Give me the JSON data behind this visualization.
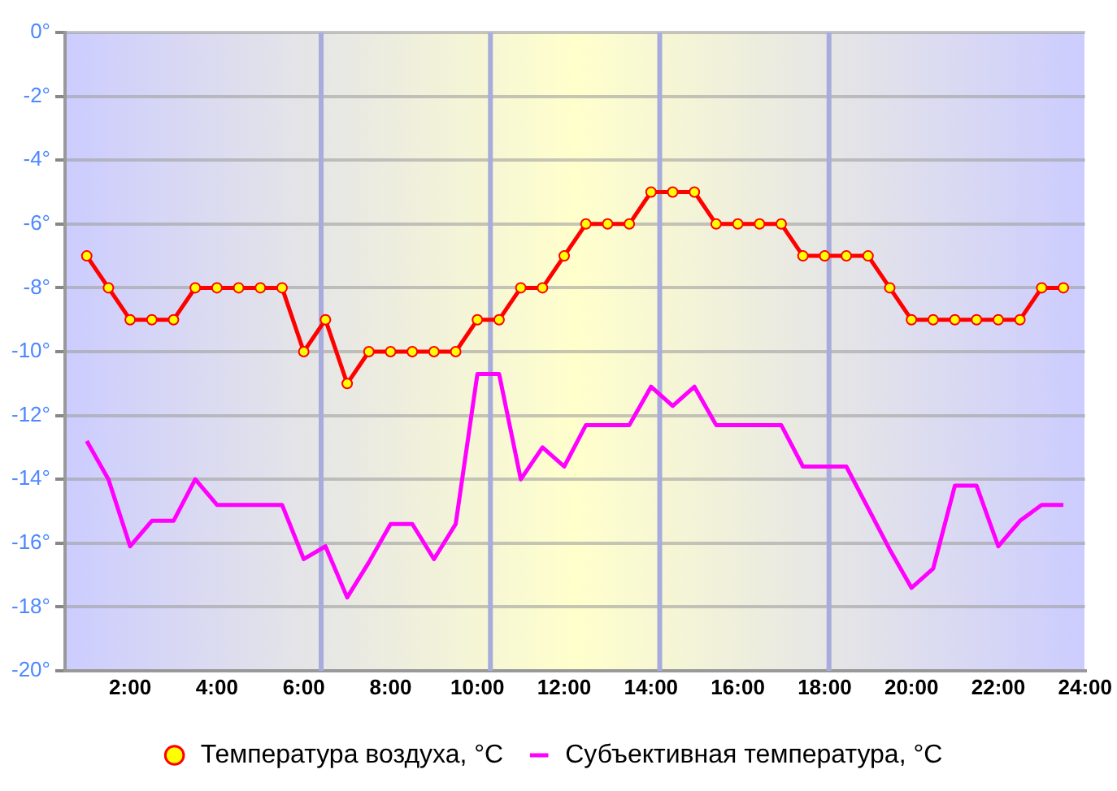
{
  "chart_data": {
    "type": "line",
    "x": [
      1,
      1.5,
      2,
      2.5,
      3,
      3.5,
      4,
      4.5,
      5,
      5.5,
      6,
      6.5,
      7,
      7.5,
      8,
      8.5,
      9,
      9.5,
      10,
      10.5,
      11,
      11.5,
      12,
      12.5,
      13,
      13.5,
      14,
      14.5,
      15,
      15.5,
      16,
      16.5,
      17,
      17.5,
      18,
      18.5,
      19,
      19.5,
      20,
      20.5,
      21,
      21.5,
      22,
      22.5,
      23,
      23.5
    ],
    "series": [
      {
        "name": "Температура воздуха, °C",
        "color": "#ff0000",
        "marker": "circle",
        "values": [
          -7,
          -8,
          -9,
          -9,
          -9,
          -8,
          -8,
          -8,
          -8,
          -8,
          -10,
          -9,
          -11,
          -10,
          -10,
          -10,
          -10,
          -10,
          -9,
          -9,
          -8,
          -8,
          -7,
          -6,
          -6,
          -6,
          -5,
          -5,
          -5,
          -6,
          -6,
          -6,
          -6,
          -7,
          -7,
          -7,
          -7,
          -8,
          -9,
          -9,
          -9,
          -9,
          -9,
          -9,
          -8,
          -8
        ]
      },
      {
        "name": "Субъективная температура, °C",
        "color": "#ff00ff",
        "marker": "none",
        "values": [
          -12.8,
          -14.0,
          -16.1,
          -15.3,
          -15.3,
          -14.0,
          -14.8,
          -14.8,
          -14.8,
          -14.8,
          -16.5,
          -16.1,
          -17.7,
          -16.6,
          -15.4,
          -15.4,
          -16.5,
          -15.4,
          -10.7,
          -10.7,
          -14.0,
          -13.0,
          -13.6,
          -12.3,
          -12.3,
          -12.3,
          -11.1,
          -11.7,
          -11.1,
          -12.3,
          -12.3,
          -12.3,
          -12.3,
          -13.6,
          -13.6,
          -13.6,
          -14.9,
          -16.2,
          -17.4,
          -16.8,
          -14.2,
          -14.2,
          -16.1,
          -15.3,
          -14.8,
          -14.8
        ]
      }
    ],
    "xlim": [
      0.5,
      24
    ],
    "xticks": [
      {
        "value": 2,
        "label": "2:00"
      },
      {
        "value": 4,
        "label": "4:00"
      },
      {
        "value": 6,
        "label": "6:00"
      },
      {
        "value": 8,
        "label": "8:00"
      },
      {
        "value": 10,
        "label": "10:00"
      },
      {
        "value": 12,
        "label": "12:00"
      },
      {
        "value": 14,
        "label": "14:00"
      },
      {
        "value": 16,
        "label": "16:00"
      },
      {
        "value": 18,
        "label": "18:00"
      },
      {
        "value": 20,
        "label": "20:00"
      },
      {
        "value": 22,
        "label": "22:00"
      },
      {
        "value": 24,
        "label": "24:00"
      }
    ],
    "ylim": [
      -20,
      0
    ],
    "yticks": [
      {
        "value": -20,
        "label": "-20°"
      },
      {
        "value": -18,
        "label": "-18°"
      },
      {
        "value": -16,
        "label": "-16°"
      },
      {
        "value": -14,
        "label": "-14°"
      },
      {
        "value": -12,
        "label": "-12°"
      },
      {
        "value": -10,
        "label": "-10°"
      },
      {
        "value": -8,
        "label": "-8°"
      },
      {
        "value": -6,
        "label": "-6°"
      },
      {
        "value": -4,
        "label": "-4°"
      },
      {
        "value": -2,
        "label": "-2°"
      },
      {
        "value": 0,
        "label": "0°"
      }
    ],
    "ref_lines": [
      {
        "axis": "x",
        "value": 6.4,
        "color": "#a8acdc"
      },
      {
        "axis": "x",
        "value": 10.3,
        "color": "#a8acdc"
      },
      {
        "axis": "x",
        "value": 14.2,
        "color": "#a8acdc"
      },
      {
        "axis": "x",
        "value": 18.1,
        "color": "#a8acdc"
      }
    ],
    "grid": "y",
    "legend": "bottom"
  }
}
